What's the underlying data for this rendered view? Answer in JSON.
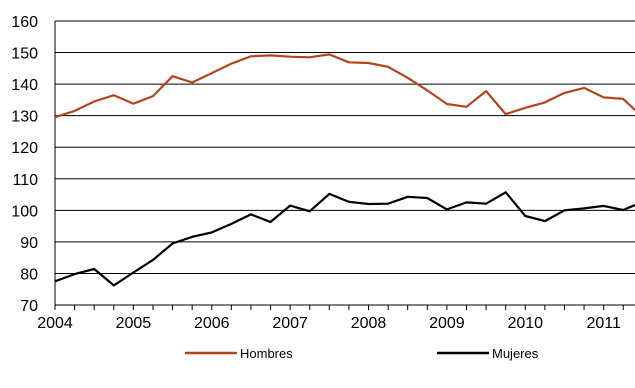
{
  "chart_data": {
    "type": "line",
    "title": "",
    "xlabel": "",
    "ylabel": "",
    "ylim": [
      70,
      160
    ],
    "xlim": [
      2004,
      2011.4
    ],
    "grid": "horizontal",
    "legend_position": "bottom",
    "yticks": [
      "70",
      "80",
      "90",
      "100",
      "110",
      "120",
      "130",
      "140",
      "150",
      "160"
    ],
    "xticks": [
      "2004",
      "2005",
      "2006",
      "2007",
      "2008",
      "2009",
      "2010",
      "2011"
    ],
    "x": [
      2004.0,
      2004.25,
      2004.5,
      2004.75,
      2005.0,
      2005.25,
      2005.5,
      2005.75,
      2006.0,
      2006.25,
      2006.5,
      2006.75,
      2007.0,
      2007.25,
      2007.5,
      2007.75,
      2008.0,
      2008.25,
      2008.5,
      2008.75,
      2009.0,
      2009.25,
      2009.5,
      2009.75,
      2010.0,
      2010.25,
      2010.5,
      2010.75,
      2011.0,
      2011.25,
      2011.4
    ],
    "series": [
      {
        "name": "Hombres",
        "color": "#b5441d",
        "values": [
          129.5,
          131.5,
          134.5,
          136.5,
          133.8,
          136.2,
          142.5,
          140.5,
          143.5,
          146.5,
          148.8,
          149.1,
          148.7,
          148.5,
          149.4,
          146.9,
          146.7,
          145.5,
          142,
          138,
          133.7,
          132.8,
          137.8,
          130.5,
          132.5,
          134.2,
          137.2,
          138.8,
          135.8,
          135.3,
          131.8
        ]
      },
      {
        "name": "Mujeres",
        "color": "#000000",
        "values": [
          77.5,
          79.8,
          81.4,
          76.2,
          80.3,
          84.3,
          89.5,
          91.6,
          93.0,
          95.7,
          98.7,
          96.3,
          101.5,
          99.7,
          105.2,
          102.7,
          102,
          102.1,
          104.3,
          103.9,
          100.3,
          102.5,
          102.1,
          105.7,
          98.2,
          96.6,
          100.0,
          100.6,
          101.4,
          100.1,
          101.7
        ]
      }
    ]
  }
}
